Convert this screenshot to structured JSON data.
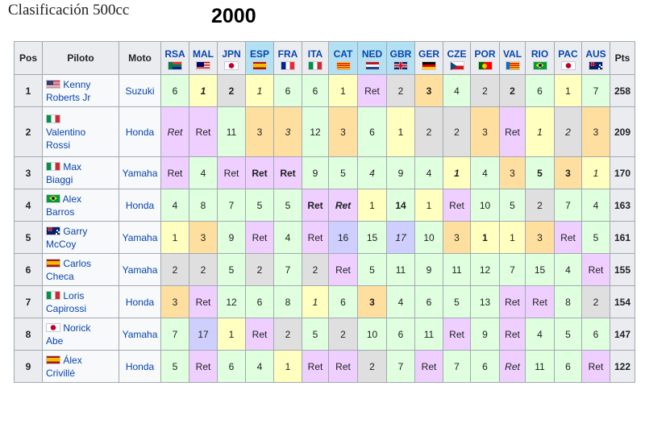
{
  "section_title": "Clasificación 500cc",
  "year_title": "2000",
  "headers": {
    "pos": "Pos",
    "rider": "Piloto",
    "bike": "Moto",
    "pts": "Pts"
  },
  "races": [
    {
      "code": "RSA",
      "flag": "rsa",
      "flag_icon": "south-africa-flag-icon",
      "highlight": false
    },
    {
      "code": "MAL",
      "flag": "mal",
      "flag_icon": "malaysia-flag-icon",
      "highlight": false
    },
    {
      "code": "JPN",
      "flag": "jpn",
      "flag_icon": "japan-flag-icon",
      "highlight": false
    },
    {
      "code": "ESP",
      "flag": "esp",
      "flag_icon": "spain-flag-icon",
      "highlight": true
    },
    {
      "code": "FRA",
      "flag": "fra",
      "flag_icon": "france-flag-icon",
      "highlight": false
    },
    {
      "code": "ITA",
      "flag": "ita",
      "flag_icon": "italy-flag-icon",
      "highlight": false
    },
    {
      "code": "CAT",
      "flag": "cat",
      "flag_icon": "catalonia-flag-icon",
      "highlight": true
    },
    {
      "code": "NED",
      "flag": "ned",
      "flag_icon": "netherlands-flag-icon",
      "highlight": true
    },
    {
      "code": "GBR",
      "flag": "gbr",
      "flag_icon": "uk-flag-icon",
      "highlight": true
    },
    {
      "code": "GER",
      "flag": "ger",
      "flag_icon": "germany-flag-icon",
      "highlight": false
    },
    {
      "code": "CZE",
      "flag": "cze",
      "flag_icon": "czech-flag-icon",
      "highlight": false
    },
    {
      "code": "POR",
      "flag": "por",
      "flag_icon": "portugal-flag-icon",
      "highlight": false
    },
    {
      "code": "VAL",
      "flag": "val",
      "flag_icon": "valencia-flag-icon",
      "highlight": false
    },
    {
      "code": "RIO",
      "flag": "rio",
      "flag_icon": "brazil-flag-icon",
      "highlight": false
    },
    {
      "code": "PAC",
      "flag": "pac",
      "flag_icon": "japan-flag-icon",
      "highlight": false
    },
    {
      "code": "AUS",
      "flag": "aus",
      "flag_icon": "australia-flag-icon",
      "highlight": false
    }
  ],
  "colors": {
    "gold": "#ffffbf",
    "silver": "#dfdfdf",
    "bronze": "#ffdf9f",
    "points": "#dfffdf",
    "retired": "#efcfff",
    "non_points": "#cfcfff",
    "header_highlight": "#b3e0f2",
    "link": "#0645ad"
  },
  "rows": [
    {
      "pos": "1",
      "rider": "Kenny Roberts Jr",
      "rider_lines": [
        "Kenny",
        "Roberts Jr"
      ],
      "flag": "usa",
      "flag_icon": "usa-flag-icon",
      "bike": "Suzuki",
      "pts": "258",
      "results": [
        {
          "v": "6",
          "c": "green"
        },
        {
          "v": "1",
          "c": "gold",
          "i": true,
          "b": true
        },
        {
          "v": "2",
          "c": "silver",
          "b": true
        },
        {
          "v": "1",
          "c": "gold",
          "i": true
        },
        {
          "v": "6",
          "c": "green"
        },
        {
          "v": "6",
          "c": "green"
        },
        {
          "v": "1",
          "c": "gold"
        },
        {
          "v": "Ret",
          "c": "ret"
        },
        {
          "v": "2",
          "c": "silver"
        },
        {
          "v": "3",
          "c": "bronze",
          "b": true
        },
        {
          "v": "4",
          "c": "green"
        },
        {
          "v": "2",
          "c": "silver"
        },
        {
          "v": "2",
          "c": "silver",
          "b": true
        },
        {
          "v": "6",
          "c": "green"
        },
        {
          "v": "1",
          "c": "gold"
        },
        {
          "v": "7",
          "c": "green"
        }
      ]
    },
    {
      "pos": "2",
      "rider": "Valentino Rossi",
      "rider_lines": [
        "",
        "Valentino",
        "Rossi"
      ],
      "flag": "ita",
      "flag_icon": "italy-flag-icon",
      "bike": "Honda",
      "pts": "209",
      "results": [
        {
          "v": "Ret",
          "c": "ret",
          "i": true
        },
        {
          "v": "Ret",
          "c": "ret"
        },
        {
          "v": "11",
          "c": "green"
        },
        {
          "v": "3",
          "c": "bronze"
        },
        {
          "v": "3",
          "c": "bronze",
          "i": true
        },
        {
          "v": "12",
          "c": "green"
        },
        {
          "v": "3",
          "c": "bronze"
        },
        {
          "v": "6",
          "c": "green"
        },
        {
          "v": "1",
          "c": "gold"
        },
        {
          "v": "2",
          "c": "silver"
        },
        {
          "v": "2",
          "c": "silver"
        },
        {
          "v": "3",
          "c": "bronze"
        },
        {
          "v": "Ret",
          "c": "ret"
        },
        {
          "v": "1",
          "c": "gold",
          "i": true
        },
        {
          "v": "2",
          "c": "silver",
          "i": true
        },
        {
          "v": "3",
          "c": "bronze"
        }
      ]
    },
    {
      "pos": "3",
      "rider": "Max Biaggi",
      "rider_lines": [
        "Max",
        "Biaggi"
      ],
      "flag": "ita",
      "flag_icon": "italy-flag-icon",
      "bike": "Yamaha",
      "pts": "170",
      "results": [
        {
          "v": "Ret",
          "c": "ret"
        },
        {
          "v": "4",
          "c": "green"
        },
        {
          "v": "Ret",
          "c": "ret"
        },
        {
          "v": "Ret",
          "c": "ret",
          "b": true
        },
        {
          "v": "Ret",
          "c": "ret",
          "b": true
        },
        {
          "v": "9",
          "c": "green"
        },
        {
          "v": "5",
          "c": "green"
        },
        {
          "v": "4",
          "c": "green",
          "i": true
        },
        {
          "v": "9",
          "c": "green"
        },
        {
          "v": "4",
          "c": "green"
        },
        {
          "v": "1",
          "c": "gold",
          "i": true,
          "b": true
        },
        {
          "v": "4",
          "c": "green"
        },
        {
          "v": "3",
          "c": "bronze"
        },
        {
          "v": "5",
          "c": "green",
          "b": true
        },
        {
          "v": "3",
          "c": "bronze",
          "b": true
        },
        {
          "v": "1",
          "c": "gold",
          "i": true
        }
      ]
    },
    {
      "pos": "4",
      "rider": "Alex Barros",
      "rider_lines": [
        "Alex",
        "Barros"
      ],
      "flag": "brz",
      "flag_icon": "brazil-flag-icon",
      "bike": "Honda",
      "pts": "163",
      "results": [
        {
          "v": "4",
          "c": "green"
        },
        {
          "v": "8",
          "c": "green"
        },
        {
          "v": "7",
          "c": "green"
        },
        {
          "v": "5",
          "c": "green"
        },
        {
          "v": "5",
          "c": "green"
        },
        {
          "v": "Ret",
          "c": "ret",
          "b": true
        },
        {
          "v": "Ret",
          "c": "ret",
          "b": true,
          "i": true
        },
        {
          "v": "1",
          "c": "gold"
        },
        {
          "v": "14",
          "c": "green",
          "b": true
        },
        {
          "v": "1",
          "c": "gold"
        },
        {
          "v": "Ret",
          "c": "ret"
        },
        {
          "v": "10",
          "c": "green"
        },
        {
          "v": "5",
          "c": "green"
        },
        {
          "v": "2",
          "c": "silver"
        },
        {
          "v": "7",
          "c": "green"
        },
        {
          "v": "4",
          "c": "green"
        }
      ]
    },
    {
      "pos": "5",
      "rider": "Garry McCoy",
      "rider_lines": [
        "Garry",
        "McCoy"
      ],
      "flag": "aus",
      "flag_icon": "australia-flag-icon",
      "bike": "Yamaha",
      "pts": "161",
      "results": [
        {
          "v": "1",
          "c": "gold"
        },
        {
          "v": "3",
          "c": "bronze"
        },
        {
          "v": "9",
          "c": "green"
        },
        {
          "v": "Ret",
          "c": "ret"
        },
        {
          "v": "4",
          "c": "green"
        },
        {
          "v": "Ret",
          "c": "ret"
        },
        {
          "v": "16",
          "c": "dnq"
        },
        {
          "v": "15",
          "c": "green"
        },
        {
          "v": "17",
          "c": "dnq",
          "i": true
        },
        {
          "v": "10",
          "c": "green"
        },
        {
          "v": "3",
          "c": "bronze"
        },
        {
          "v": "1",
          "c": "gold",
          "b": true
        },
        {
          "v": "1",
          "c": "gold"
        },
        {
          "v": "3",
          "c": "bronze"
        },
        {
          "v": "Ret",
          "c": "ret"
        },
        {
          "v": "5",
          "c": "green"
        }
      ]
    },
    {
      "pos": "6",
      "rider": "Carlos Checa",
      "rider_lines": [
        "Carlos",
        "Checa"
      ],
      "flag": "esp",
      "flag_icon": "spain-flag-icon",
      "bike": "Yamaha",
      "pts": "155",
      "results": [
        {
          "v": "2",
          "c": "silver"
        },
        {
          "v": "2",
          "c": "silver"
        },
        {
          "v": "5",
          "c": "green"
        },
        {
          "v": "2",
          "c": "silver"
        },
        {
          "v": "7",
          "c": "green"
        },
        {
          "v": "2",
          "c": "silver"
        },
        {
          "v": "Ret",
          "c": "ret"
        },
        {
          "v": "5",
          "c": "green"
        },
        {
          "v": "11",
          "c": "green"
        },
        {
          "v": "9",
          "c": "green"
        },
        {
          "v": "11",
          "c": "green"
        },
        {
          "v": "12",
          "c": "green"
        },
        {
          "v": "7",
          "c": "green"
        },
        {
          "v": "15",
          "c": "green"
        },
        {
          "v": "4",
          "c": "green"
        },
        {
          "v": "Ret",
          "c": "ret"
        }
      ]
    },
    {
      "pos": "7",
      "rider": "Loris Capirossi",
      "rider_lines": [
        "Loris",
        "Capirossi"
      ],
      "flag": "ita",
      "flag_icon": "italy-flag-icon",
      "bike": "Honda",
      "pts": "154",
      "results": [
        {
          "v": "3",
          "c": "bronze"
        },
        {
          "v": "Ret",
          "c": "ret"
        },
        {
          "v": "12",
          "c": "green"
        },
        {
          "v": "6",
          "c": "green"
        },
        {
          "v": "8",
          "c": "green"
        },
        {
          "v": "1",
          "c": "gold",
          "i": true
        },
        {
          "v": "6",
          "c": "green"
        },
        {
          "v": "3",
          "c": "bronze",
          "b": true
        },
        {
          "v": "4",
          "c": "green"
        },
        {
          "v": "6",
          "c": "green"
        },
        {
          "v": "5",
          "c": "green"
        },
        {
          "v": "13",
          "c": "green"
        },
        {
          "v": "Ret",
          "c": "ret"
        },
        {
          "v": "Ret",
          "c": "ret"
        },
        {
          "v": "8",
          "c": "green"
        },
        {
          "v": "2",
          "c": "silver"
        }
      ]
    },
    {
      "pos": "8",
      "rider": "Norick Abe",
      "rider_lines": [
        "Norick",
        "Abe"
      ],
      "flag": "jpnr",
      "flag_icon": "japan-flag-icon",
      "bike": "Yamaha",
      "pts": "147",
      "results": [
        {
          "v": "7",
          "c": "green"
        },
        {
          "v": "17",
          "c": "dnq"
        },
        {
          "v": "1",
          "c": "gold"
        },
        {
          "v": "Ret",
          "c": "ret"
        },
        {
          "v": "2",
          "c": "silver"
        },
        {
          "v": "5",
          "c": "green"
        },
        {
          "v": "2",
          "c": "silver"
        },
        {
          "v": "10",
          "c": "green"
        },
        {
          "v": "6",
          "c": "green"
        },
        {
          "v": "11",
          "c": "green"
        },
        {
          "v": "Ret",
          "c": "ret"
        },
        {
          "v": "9",
          "c": "green"
        },
        {
          "v": "Ret",
          "c": "ret"
        },
        {
          "v": "4",
          "c": "green"
        },
        {
          "v": "5",
          "c": "green"
        },
        {
          "v": "6",
          "c": "green"
        }
      ]
    },
    {
      "pos": "9",
      "rider": "Álex Crivillé",
      "rider_lines": [
        "Álex",
        "Crivillé"
      ],
      "flag": "esp",
      "flag_icon": "spain-flag-icon",
      "bike": "Honda",
      "pts": "122",
      "results": [
        {
          "v": "5",
          "c": "green"
        },
        {
          "v": "Ret",
          "c": "ret"
        },
        {
          "v": "6",
          "c": "green"
        },
        {
          "v": "4",
          "c": "green"
        },
        {
          "v": "1",
          "c": "gold"
        },
        {
          "v": "Ret",
          "c": "ret"
        },
        {
          "v": "Ret",
          "c": "ret"
        },
        {
          "v": "2",
          "c": "silver"
        },
        {
          "v": "7",
          "c": "green"
        },
        {
          "v": "Ret",
          "c": "ret"
        },
        {
          "v": "7",
          "c": "green"
        },
        {
          "v": "6",
          "c": "green"
        },
        {
          "v": "Ret",
          "c": "ret",
          "i": true
        },
        {
          "v": "11",
          "c": "green"
        },
        {
          "v": "6",
          "c": "green"
        },
        {
          "v": "Ret",
          "c": "ret"
        }
      ]
    }
  ]
}
